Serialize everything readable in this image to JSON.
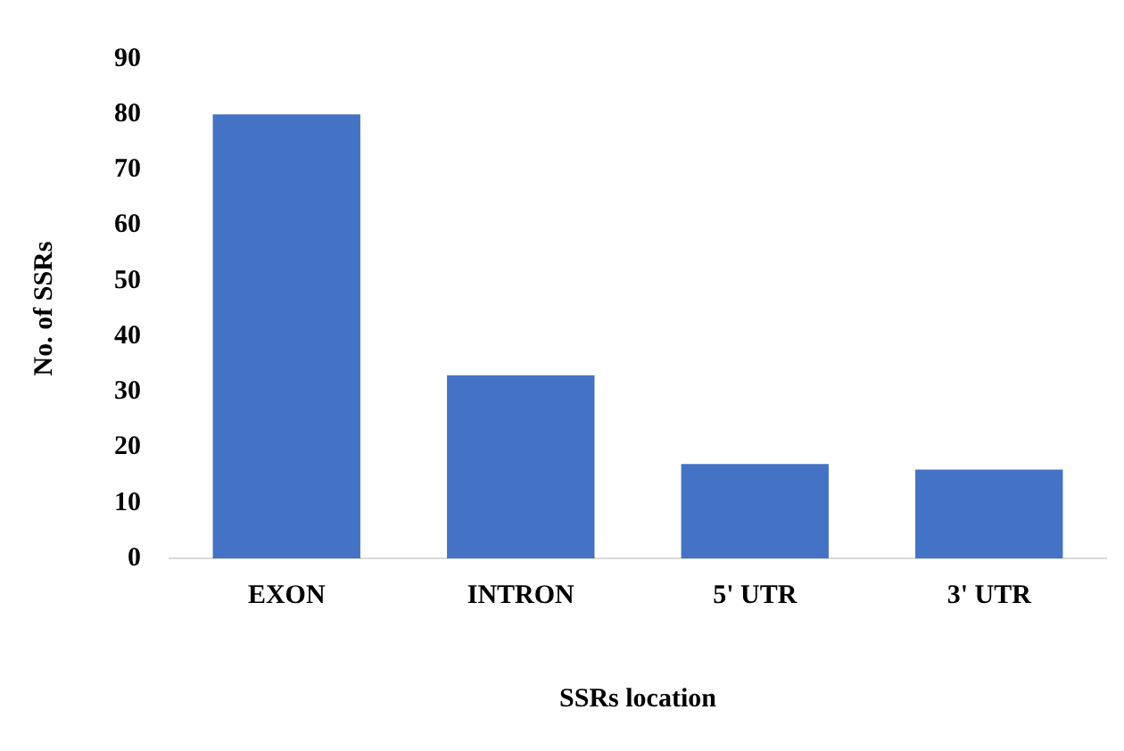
{
  "chart_data": {
    "type": "bar",
    "xlabel": "SSRs location",
    "ylabel": "No. of SSRs",
    "categories": [
      "EXON",
      "INTRON",
      "5' UTR",
      "3' UTR"
    ],
    "values": [
      80,
      33,
      17,
      16
    ],
    "color": "#4472c4",
    "ylim": [
      0,
      90
    ],
    "yticks": [
      0,
      10,
      20,
      30,
      40,
      50,
      60,
      70,
      80,
      90
    ],
    "grid": false,
    "legend": false
  }
}
